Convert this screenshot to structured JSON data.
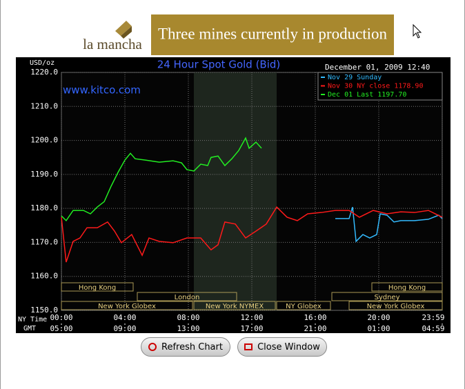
{
  "banner": {
    "logo": "la mancha",
    "text": "Three mines currently in production"
  },
  "buttons": [
    "Refresh Chart",
    "Close Window"
  ],
  "chart_data": {
    "type": "line",
    "title": "24 Hour Spot Gold (Bid)",
    "date": "December 01, 2009 12:40",
    "watermark": "www.kitco.com",
    "y_label": "USD/oz",
    "x_label": "NY Time",
    "x2_label": "GMT",
    "xlim": [
      0,
      24
    ],
    "ylim": [
      1150,
      1220
    ],
    "yticks": [
      {
        "value": 1150,
        "label": "1150.0"
      },
      {
        "value": 1160,
        "label": "1160.0"
      },
      {
        "value": 1170,
        "label": "1170.0"
      },
      {
        "value": 1180,
        "label": "1180.0"
      },
      {
        "value": 1190,
        "label": "1190.0"
      },
      {
        "value": 1200,
        "label": "1200.0"
      },
      {
        "value": 1210,
        "label": "1210.0"
      },
      {
        "value": 1220,
        "label": "1220.0"
      }
    ],
    "xticks": [
      {
        "value": 0,
        "label": "00:00"
      },
      {
        "value": 4,
        "label": "04:00"
      },
      {
        "value": 8,
        "label": "08:00"
      },
      {
        "value": 12,
        "label": "12:00"
      },
      {
        "value": 16,
        "label": "16:00"
      },
      {
        "value": 20,
        "label": "20:00"
      },
      {
        "value": 24,
        "label": "23:59"
      }
    ],
    "x2ticks": [
      {
        "value": 0,
        "label": "05:00"
      },
      {
        "value": 4,
        "label": "09:00"
      },
      {
        "value": 8,
        "label": "13:00"
      },
      {
        "value": 12,
        "label": "17:00"
      },
      {
        "value": 16,
        "label": "21:00"
      },
      {
        "value": 20,
        "label": "01:00"
      },
      {
        "value": 24,
        "label": "04:59"
      }
    ],
    "grid": true,
    "sessions": [
      "Hong Kong",
      "Hong Kong",
      "London",
      "Sydney",
      "New York Globex",
      "New York NYMEX",
      "NY Globex",
      "New York Globex"
    ],
    "series": [
      {
        "name": "Nov 29 Sunday",
        "color": "#33bbff",
        "x": [
          17.26,
          18.13,
          18.35,
          18.57,
          19,
          19.43,
          19.87,
          20.09,
          20.52,
          20.96,
          21.39,
          22.26,
          23.13,
          23.78,
          24
        ],
        "values": [
          1177,
          1177,
          1180.4,
          1170.3,
          1172.3,
          1171.3,
          1172.3,
          1178.4,
          1178,
          1176,
          1176.4,
          1176.4,
          1176.8,
          1178,
          1177
        ]
      },
      {
        "name": "Nov 30 NY close 1178.90",
        "color": "#ff1a1a",
        "x": [
          0,
          0.3,
          0.74,
          1.17,
          1.61,
          2.26,
          2.91,
          3.35,
          3.78,
          4.43,
          5.09,
          5.52,
          6.17,
          7.04,
          7.91,
          8.78,
          9.43,
          9.87,
          10.3,
          10.96,
          11.61,
          12.26,
          12.91,
          13.57,
          14.22,
          14.87,
          15.52,
          16.39,
          17.26,
          18.13,
          18.78,
          19.65,
          20.52,
          21.39,
          22.26,
          23.13,
          24
        ],
        "values": [
          1177.4,
          1164.2,
          1170.3,
          1171.3,
          1174.3,
          1174.3,
          1176,
          1173.3,
          1169.9,
          1172.3,
          1166.2,
          1171.3,
          1170.3,
          1169.9,
          1171.3,
          1171.3,
          1167.8,
          1169.3,
          1176,
          1175.4,
          1171.3,
          1173.3,
          1175.4,
          1180.4,
          1177.4,
          1176.4,
          1178.4,
          1178.8,
          1179.4,
          1179.4,
          1177.4,
          1179.4,
          1178.4,
          1179,
          1178.8,
          1179.4,
          1177.4
        ]
      },
      {
        "name": "Dec 01 Last 1197.70",
        "color": "#22ee22",
        "x": [
          0,
          0.3,
          0.74,
          1.39,
          1.83,
          2.26,
          2.7,
          3.13,
          3.57,
          4,
          4.35,
          4.65,
          5.3,
          6.17,
          7.04,
          7.57,
          7.91,
          8.35,
          8.78,
          9.22,
          9.43,
          9.87,
          10.3,
          10.74,
          11.17,
          11.61,
          11.83,
          12.26,
          12.61
        ],
        "values": [
          1177.8,
          1176.4,
          1179.4,
          1179.4,
          1178.4,
          1180.4,
          1182,
          1186.5,
          1190.6,
          1194.2,
          1196.2,
          1194.6,
          1194.2,
          1193.6,
          1194,
          1193.4,
          1191.4,
          1191,
          1193,
          1192.6,
          1195,
          1195.4,
          1192.6,
          1194.6,
          1197,
          1200.7,
          1197.7,
          1199.5,
          1197.7
        ]
      }
    ]
  }
}
